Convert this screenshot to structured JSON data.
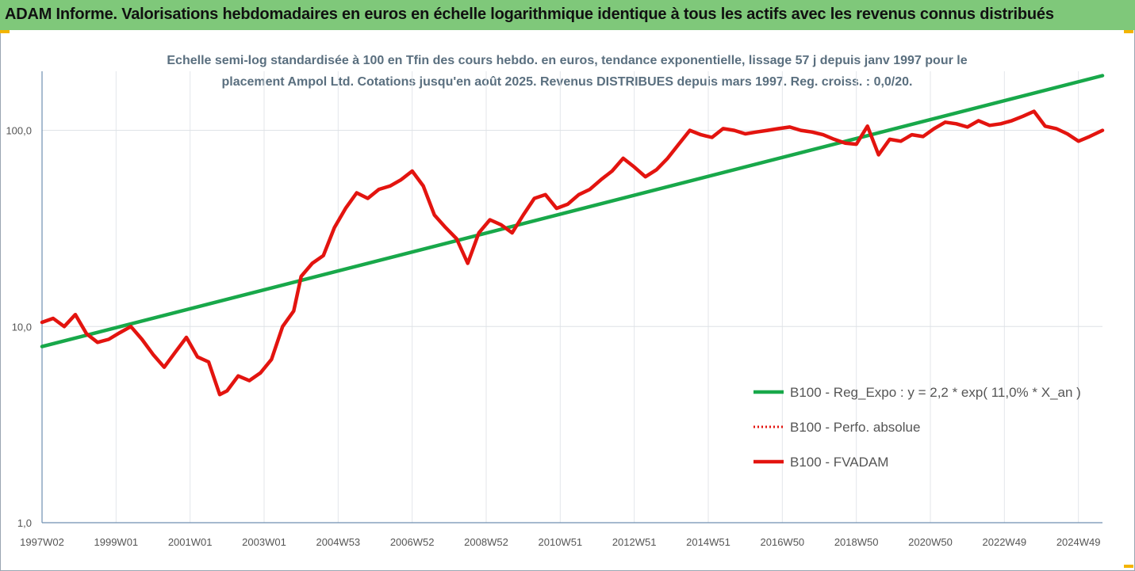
{
  "banner": {
    "title": "ADAM Informe. Valorisations hebdomadaires en euros en échelle logarithmique identique à tous les actifs avec les revenus connus distribués",
    "background": "#7fc87a"
  },
  "chart_data": {
    "type": "line",
    "title_line1": "Echelle semi-log standardisée à 100 en Tfin des cours hebdo. en euros, tendance exponentielle, lissage 57 j depuis janv 1997 pour le",
    "title_line2": "placement Ampol Ltd. Cotations jusqu'en août 2025. Revenus DISTRIBUES depuis mars 1997. Reg. croiss. : 0,0/20.",
    "y_scale": "log",
    "ylim": [
      1,
      200
    ],
    "xlim": [
      1997.0,
      2025.65
    ],
    "y_ticks": [
      1,
      10,
      100
    ],
    "y_tick_labels": [
      "1,0",
      "10,0",
      "100,0"
    ],
    "x_ticks": [
      1997.0,
      1999.0,
      2001.0,
      2003.0,
      2005.0,
      2007.0,
      2009.0,
      2011.0,
      2013.0,
      2015.0,
      2017.0,
      2019.0,
      2021.0,
      2023.0,
      2025.0
    ],
    "x_tick_labels": [
      "1997W02",
      "1999W01",
      "2001W01",
      "2003W01",
      "2004W53",
      "2006W52",
      "2008W52",
      "2010W51",
      "2012W51",
      "2014W51",
      "2016W50",
      "2018W50",
      "2020W50",
      "2022W49",
      "2024W49"
    ],
    "grid": {
      "vertical": true,
      "horizontal": true
    },
    "legend_position": "bottom-right",
    "series": [
      {
        "name": "B100 - Reg_Expo : y = 2,2 * exp( 11,0% *  X_an )",
        "color": "#18a84a",
        "style": "solid",
        "x": [
          1997.0,
          2025.65
        ],
        "y": [
          7.9,
          190
        ]
      },
      {
        "name": "B100 - Perfo. absolue",
        "color": "#e3140f",
        "style": "dotted",
        "x": [],
        "y": []
      },
      {
        "name": "B100 - FVADAM",
        "color": "#e3140f",
        "style": "solid",
        "x": [
          1997.0,
          1997.3,
          1997.6,
          1997.9,
          1998.2,
          1998.5,
          1998.8,
          1999.1,
          1999.4,
          1999.7,
          2000.0,
          2000.3,
          2000.6,
          2000.9,
          2001.2,
          2001.5,
          2001.8,
          2002.0,
          2002.3,
          2002.6,
          2002.9,
          2003.2,
          2003.5,
          2003.8,
          2004.0,
          2004.3,
          2004.6,
          2004.9,
          2005.2,
          2005.5,
          2005.8,
          2006.1,
          2006.4,
          2006.7,
          2007.0,
          2007.3,
          2007.6,
          2007.9,
          2008.2,
          2008.5,
          2008.8,
          2009.1,
          2009.4,
          2009.7,
          2010.0,
          2010.3,
          2010.6,
          2010.9,
          2011.2,
          2011.5,
          2011.8,
          2012.1,
          2012.4,
          2012.7,
          2013.0,
          2013.3,
          2013.6,
          2013.9,
          2014.2,
          2014.5,
          2014.8,
          2015.1,
          2015.4,
          2015.7,
          2016.0,
          2016.3,
          2016.6,
          2016.9,
          2017.2,
          2017.5,
          2017.8,
          2018.1,
          2018.4,
          2018.7,
          2019.0,
          2019.3,
          2019.6,
          2019.9,
          2020.2,
          2020.5,
          2020.8,
          2021.1,
          2021.4,
          2021.7,
          2022.0,
          2022.3,
          2022.6,
          2022.9,
          2023.2,
          2023.5,
          2023.8,
          2024.1,
          2024.4,
          2024.7,
          2025.0,
          2025.3,
          2025.65
        ],
        "y": [
          10.5,
          11.0,
          10.0,
          11.5,
          9.2,
          8.3,
          8.6,
          9.3,
          10.0,
          8.6,
          7.2,
          6.2,
          7.4,
          8.8,
          7.0,
          6.6,
          4.5,
          4.7,
          5.6,
          5.3,
          5.8,
          6.8,
          10.0,
          12.0,
          18.0,
          21.0,
          23.0,
          32.0,
          40.0,
          48.0,
          45.0,
          50.0,
          52.0,
          56.0,
          62.0,
          52.0,
          37.0,
          32.0,
          28.0,
          21.0,
          30.0,
          35.0,
          33.0,
          30.0,
          37.0,
          45.0,
          47.0,
          40.0,
          42.0,
          47.0,
          50.0,
          56.0,
          62.0,
          72.0,
          65.0,
          58.0,
          63.0,
          72.0,
          85.0,
          100.0,
          95.0,
          92.0,
          102.0,
          100.0,
          96.0,
          98.0,
          100.0,
          102.0,
          104.0,
          100.0,
          98.0,
          95.0,
          90.0,
          86.0,
          85.0,
          105.0,
          75.0,
          90.0,
          88.0,
          95.0,
          93.0,
          102.0,
          110.0,
          108.0,
          104.0,
          112.0,
          106.0,
          108.0,
          112.0,
          118.0,
          125.0,
          105.0,
          102.0,
          96.0,
          88.0,
          93.0,
          100.0
        ]
      }
    ]
  }
}
